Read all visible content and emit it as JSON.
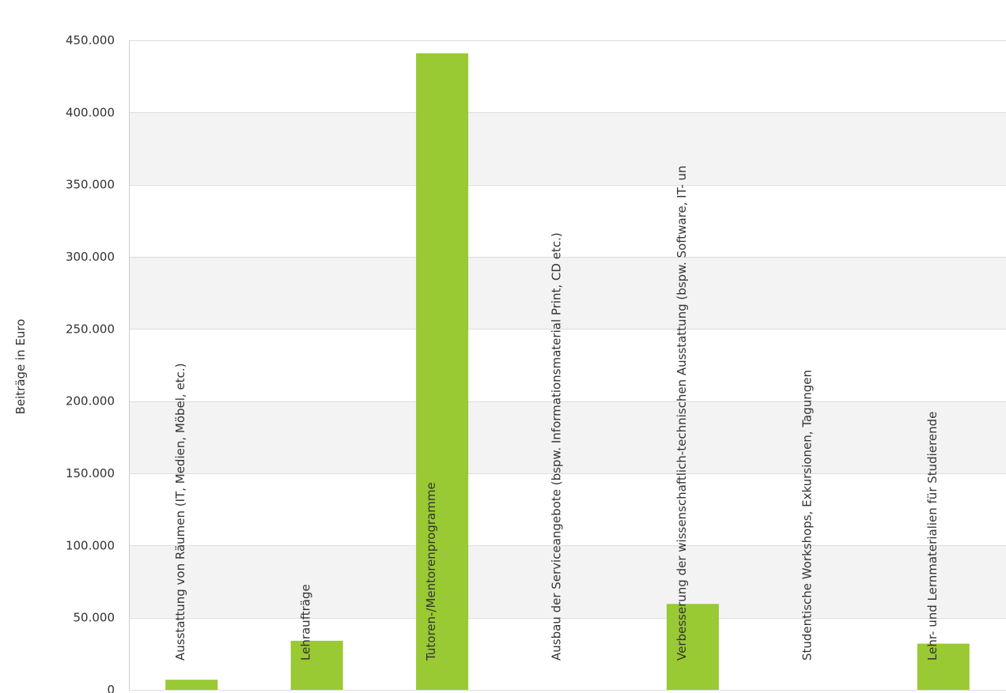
{
  "chart_data": {
    "type": "bar",
    "ylabel": "Beiträge in Euro",
    "ylim": [
      0,
      450000
    ],
    "yticks": [
      0,
      50000,
      100000,
      150000,
      200000,
      250000,
      300000,
      350000,
      400000,
      450000
    ],
    "ytick_labels": [
      "0",
      "50.000",
      "100.000",
      "150.000",
      "200.000",
      "250.000",
      "300.000",
      "350.000",
      "400.000",
      "450.000"
    ],
    "categories": [
      "Ausstattung von Räumen (IT, Medien, Möbel, etc.)",
      "Lehraufträge",
      "Tutoren-/Mentorenprogramme",
      "Ausbau der Serviceangebote (bspw. Informationsmaterial Print, CD etc.)",
      "Verbesserung der wissenschaftlich-technischen Ausstattung (bspw. Software, IT- un",
      "Studentische Workshops, Exkursionen, Tagungen",
      "Lehr- und Lernmaterialien für Studierende"
    ],
    "values": [
      7000,
      34000,
      441000,
      0,
      59500,
      0,
      32000
    ],
    "bar_color": "#99c933",
    "band_color": "#f3f3f3",
    "grid": true,
    "legend": "none"
  }
}
